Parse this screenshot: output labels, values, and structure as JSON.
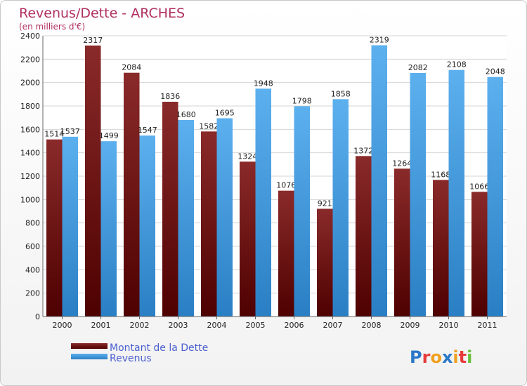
{
  "chart_data": {
    "type": "bar",
    "title": "Revenus/Dette - ARCHES",
    "subtitle": "(en milliers d'€)",
    "categories": [
      "2000",
      "2001",
      "2002",
      "2003",
      "2004",
      "2005",
      "2006",
      "2007",
      "2008",
      "2009",
      "2010",
      "2011"
    ],
    "series": [
      {
        "name": "Montant de la Dette",
        "values": [
          1514,
          2317,
          2084,
          1836,
          1582,
          1324,
          1076,
          921,
          1372,
          1264,
          1168,
          1066
        ],
        "color": "#7a1010"
      },
      {
        "name": "Revenus",
        "values": [
          1537,
          1499,
          1547,
          1680,
          1695,
          1948,
          1798,
          1858,
          2319,
          2082,
          2108,
          2048
        ],
        "color": "#4fa3e6"
      }
    ],
    "ylim": [
      0,
      2400
    ],
    "yticks": [
      0,
      200,
      400,
      600,
      800,
      1000,
      1200,
      1400,
      1600,
      1800,
      2000,
      2200,
      2400
    ],
    "grid": true,
    "legend_position": "bottom-left"
  },
  "branding": {
    "logo_text": "Proxiti"
  }
}
